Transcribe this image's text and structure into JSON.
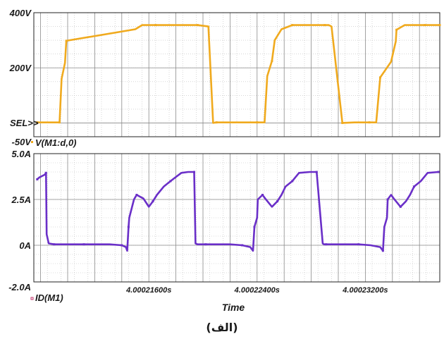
{
  "caption": "(الف)",
  "x_axis_title": "Time",
  "chart_data": [
    {
      "type": "line",
      "panel": "top",
      "trace_name": "V(M1:d,0)",
      "sel_marker": "SEL>>",
      "y_tick_labels": [
        {
          "value": 400,
          "label": "400V"
        },
        {
          "value": 200,
          "label": "200V"
        },
        {
          "value": -50,
          "label": "-50V"
        }
      ],
      "ylim": [
        -50,
        400
      ],
      "xlim": [
        4.0002075,
        4.0002375
      ],
      "x_unit": "µs",
      "grid": true,
      "color": "#f0aa1e",
      "x": [
        4.00020775,
        4.0002085,
        4.0002091,
        4.0002094,
        4.00020955,
        4.0002098,
        4.0002099,
        4.000215,
        4.0002155,
        4.0002165,
        4.0002185,
        4.0002191,
        4.0002196,
        4.0002204,
        4.00022075,
        4.000221,
        4.000222,
        4.0002239,
        4.000224,
        4.00022455,
        4.00022475,
        4.0002251,
        4.0002253,
        4.0002258,
        4.0002266,
        4.0002269,
        4.0002272,
        4.000229,
        4.0002293,
        4.0002295,
        4.0002303,
        4.0002312,
        4.0002318,
        4.0002323,
        4.0002325,
        4.0002328,
        4.0002331,
        4.0002339,
        4.00023425,
        4.0002343,
        4.0002349,
        4.0002356,
        4.0002364,
        4.00023665,
        4.000237,
        4.0002375
      ],
      "values": [
        2,
        2,
        2,
        2,
        160,
        218,
        298,
        340,
        355,
        355,
        355,
        355,
        355,
        350,
        0,
        2,
        2,
        2,
        2,
        2,
        170,
        225,
        300,
        340,
        355,
        355,
        355,
        355,
        355,
        350,
        0,
        2,
        2,
        2,
        2,
        2,
        165,
        222,
        296,
        338,
        355,
        355,
        355,
        355,
        355,
        355
      ]
    },
    {
      "type": "line",
      "panel": "bottom",
      "trace_name": "ID(M1)",
      "y_tick_labels": [
        {
          "value": 5,
          "label": "5.0A"
        },
        {
          "value": 2.5,
          "label": "2.5A"
        },
        {
          "value": 0,
          "label": "0A"
        },
        {
          "value": -2,
          "label": "-2.0A"
        }
      ],
      "ylim": [
        -2,
        5
      ],
      "xlim": [
        4.0002075,
        4.0002375
      ],
      "x_unit": "µs",
      "x_tick_labels": [
        {
          "value": 4.000216,
          "label": "4.00021600s"
        },
        {
          "value": 4.000224,
          "label": "4.00022400s"
        },
        {
          "value": 4.000232,
          "label": "4.00023200s"
        }
      ],
      "grid": true,
      "color": "#6a2fc8",
      "x": [
        4.00020775,
        4.0002079,
        4.0002083,
        4.0002084,
        4.00020845,
        4.0002086,
        4.000209,
        4.0002096,
        4.0002104,
        4.0002112,
        4.0002122,
        4.0002131,
        4.000214,
        4.0002143,
        4.0002144,
        4.0002145,
        4.00021455,
        4.0002149,
        4.0002151,
        4.0002156,
        4.000216,
        4.0002163,
        4.0002166,
        4.0002171,
        4.0002176,
        4.0002184,
        4.0002189,
        4.00021935,
        4.00021945,
        4.0002196,
        4.0002202,
        4.0002211,
        4.000222,
        4.0002229,
        4.0002235,
        4.0002237,
        4.0002238,
        4.000224,
        4.00022405,
        4.0002244,
        4.0002246,
        4.0002251,
        4.0002255,
        4.0002258,
        4.0002261,
        4.0002266,
        4.0002271,
        4.0002279,
        4.0002284,
        4.00022885,
        4.00022895,
        4.0002291,
        4.0002297,
        4.0002306,
        4.0002315,
        4.0002324,
        4.0002331,
        4.0002333,
        4.0002334,
        4.0002336,
        4.00023365,
        4.0002339,
        4.0002341,
        4.0002346,
        4.000235,
        4.0002353,
        4.0002356,
        4.0002361,
        4.0002366,
        4.0002374
      ],
      "values": [
        3.6,
        3.7,
        3.85,
        3.95,
        0.6,
        0.1,
        0.05,
        0.05,
        0.05,
        0.05,
        0.05,
        0.05,
        0.0,
        -0.1,
        -0.3,
        1.0,
        1.5,
        2.5,
        2.75,
        2.55,
        2.1,
        2.4,
        2.75,
        3.2,
        3.5,
        3.95,
        4.0,
        4.0,
        0.1,
        0.05,
        0.05,
        0.05,
        0.05,
        0.0,
        -0.1,
        -0.3,
        1.0,
        1.5,
        2.5,
        2.75,
        2.55,
        2.1,
        2.4,
        2.75,
        3.2,
        3.5,
        3.95,
        4.0,
        4.0,
        0.1,
        0.05,
        0.05,
        0.05,
        0.05,
        0.05,
        0.0,
        -0.1,
        -0.3,
        1.0,
        1.5,
        2.5,
        2.75,
        2.55,
        2.1,
        2.4,
        2.75,
        3.2,
        3.5,
        3.95,
        4.0
      ]
    }
  ]
}
